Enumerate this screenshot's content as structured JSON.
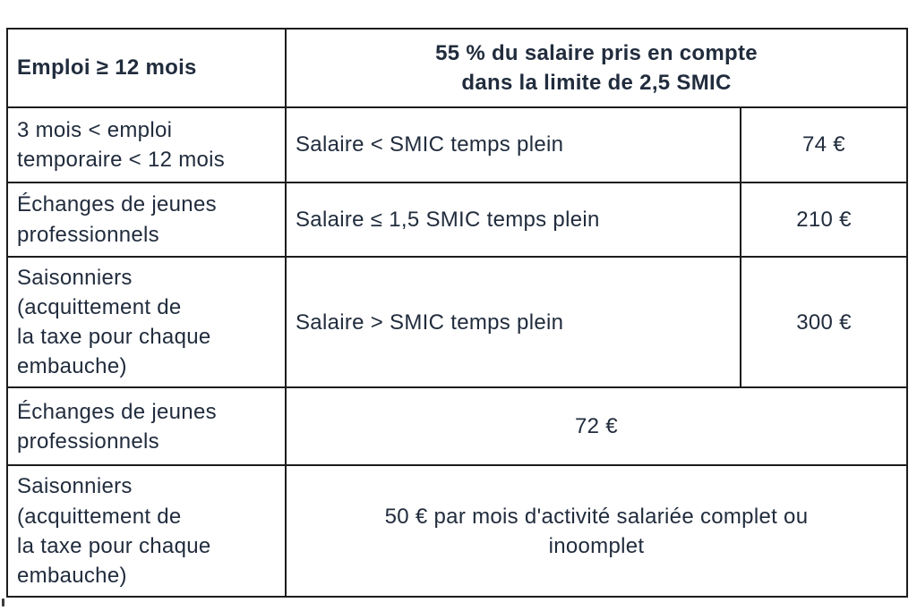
{
  "page": {
    "background_color": "#ffffff",
    "text_color": "#212c3d",
    "border_color": "#1c1c1c"
  },
  "table": {
    "header": {
      "label": "Emploi ≥ 12 mois",
      "title": "55 % du salaire pris en compte\ndans la limite de 2,5 SMIC"
    },
    "rows": [
      {
        "label": "3 mois < emploi\ntemporaire < 12 mois",
        "condition": "Salaire < SMIC temps plein",
        "amount": "74 €"
      },
      {
        "label": "Échanges de jeunes\nprofessionnels",
        "condition": "Salaire ≤ 1,5 SMIC temps plein",
        "amount": "210 €"
      },
      {
        "label": "Saisonniers\n(acquittement de\nla taxe pour chaque\nembauche)",
        "condition": "Salaire > SMIC temps plein",
        "amount": "300 €"
      },
      {
        "label": "Échanges de jeunes\nprofessionnels",
        "merged_value": "72 €"
      },
      {
        "label": "Saisonniers\n(acquittement de\nla taxe pour chaque\nembauche)",
        "merged_value": "50 € par mois d'activité salariée complet ou\ninoomplet"
      }
    ]
  }
}
